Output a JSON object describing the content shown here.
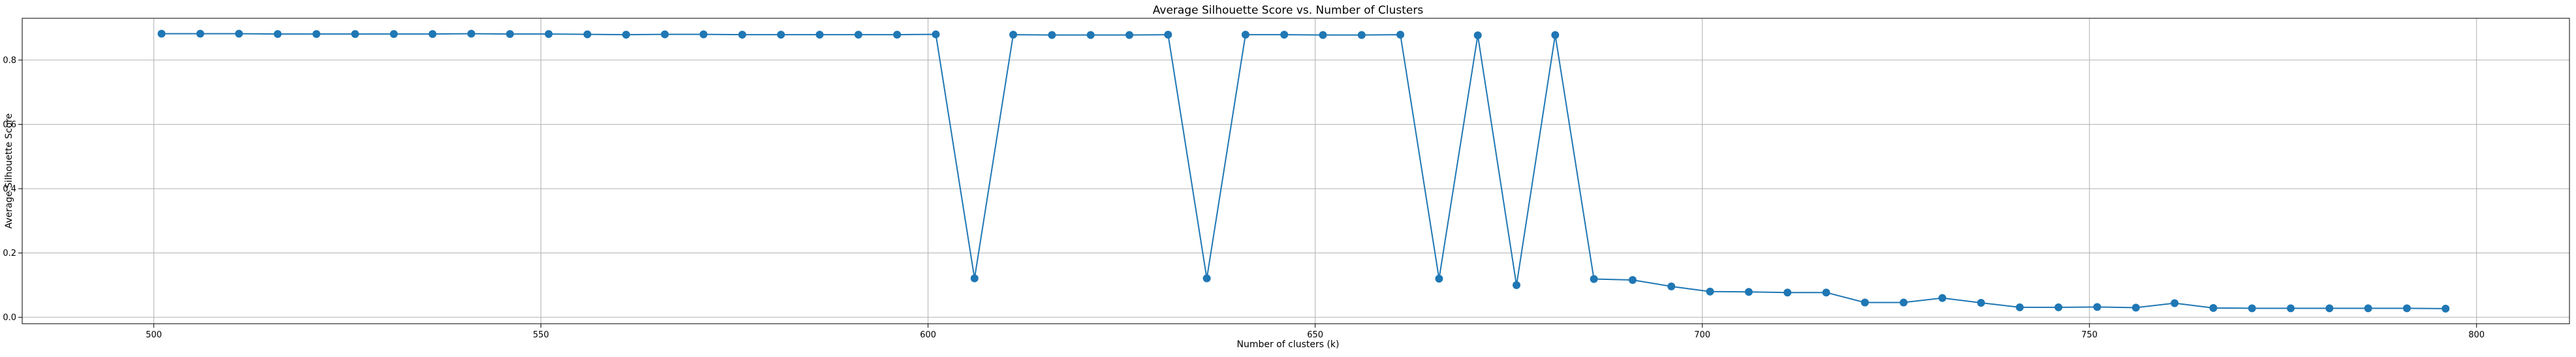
{
  "chart_data": {
    "type": "line",
    "title": "Average Silhouette Score vs. Number of Clusters",
    "xlabel": "Number of clusters (k)",
    "ylabel": "Average Silhouette Score",
    "xlim": [
      483,
      812
    ],
    "ylim": [
      -0.02,
      0.93
    ],
    "xticks": [
      500,
      550,
      600,
      650,
      700,
      750,
      800
    ],
    "yticks": [
      0.0,
      0.2,
      0.4,
      0.6,
      0.8
    ],
    "ytick_labels": [
      "0.0",
      "0.2",
      "0.4",
      "0.6",
      "0.8"
    ],
    "grid": true,
    "color": "#1f77b4",
    "series": [
      {
        "x": [
          501,
          506,
          511,
          516,
          521,
          526,
          531,
          536,
          541,
          546,
          551,
          556,
          561,
          566,
          571,
          576,
          581,
          586,
          591,
          596,
          601,
          606,
          611,
          616,
          621,
          626,
          631,
          636,
          641,
          646,
          651,
          656,
          661,
          666,
          671,
          676,
          681,
          686,
          691,
          696,
          701,
          706,
          711,
          716,
          721,
          726,
          731,
          736,
          741,
          746,
          751,
          756,
          761,
          766,
          771,
          776,
          781,
          786,
          791,
          796
        ],
        "values": [
          0.882,
          0.882,
          0.882,
          0.881,
          0.881,
          0.881,
          0.881,
          0.881,
          0.882,
          0.881,
          0.881,
          0.88,
          0.879,
          0.88,
          0.88,
          0.879,
          0.879,
          0.879,
          0.879,
          0.879,
          0.88,
          0.121,
          0.879,
          0.878,
          0.878,
          0.878,
          0.879,
          0.121,
          0.879,
          0.879,
          0.878,
          0.878,
          0.879,
          0.12,
          0.877,
          0.1,
          0.878,
          0.119,
          0.116,
          0.096,
          0.08,
          0.079,
          0.077,
          0.077,
          0.046,
          0.046,
          0.06,
          0.045,
          0.031,
          0.031,
          0.032,
          0.03,
          0.044,
          0.029,
          0.028,
          0.028,
          0.028,
          0.028,
          0.028,
          0.027
        ]
      }
    ]
  }
}
